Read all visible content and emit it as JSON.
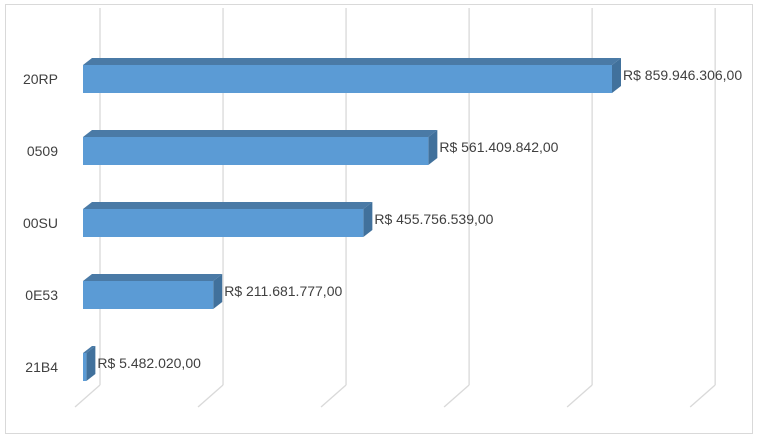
{
  "chart_data": {
    "type": "bar",
    "orientation": "horizontal",
    "style": "3d",
    "categories": [
      "20RP",
      "0509",
      "00SU",
      "0E53",
      "21B4"
    ],
    "values": [
      859946306.0,
      561409842.0,
      455756539.0,
      211681777.0,
      5482020.0
    ],
    "data_labels": [
      "R$ 859.946.306,00",
      "R$ 561.409.842,00",
      "R$ 455.756.539,00",
      "R$ 211.681.777,00",
      "R$ 5.482.020,00"
    ],
    "xlim": [
      0,
      1000000000
    ],
    "gridlines": [
      0,
      200000000,
      400000000,
      600000000,
      800000000,
      1000000000
    ],
    "grid": true,
    "legend": "none",
    "title": "",
    "xlabel": "",
    "ylabel": "",
    "colors": {
      "front": "#5b9bd5",
      "top": "#4a7aa6",
      "side": "#41719c",
      "grid": "#d9d9d9"
    }
  }
}
